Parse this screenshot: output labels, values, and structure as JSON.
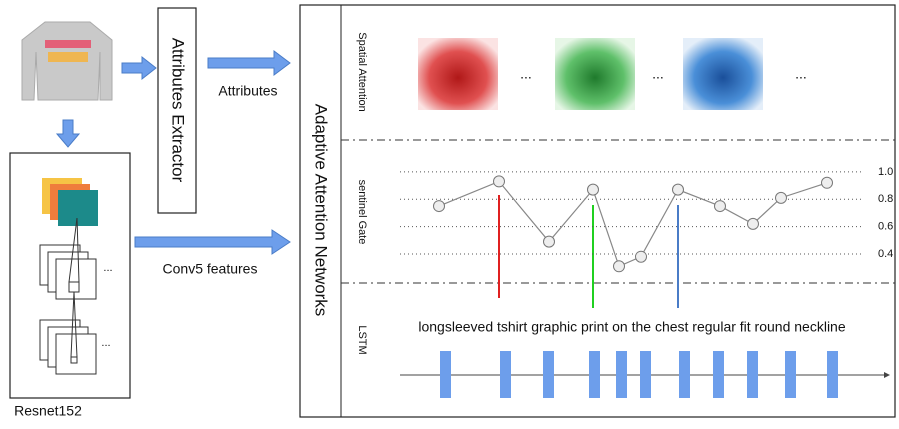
{
  "left": {
    "attributes_box": "Attributes Extractor",
    "attributes_arrow": "Attributes",
    "conv5_arrow": "Conv5 features",
    "resnet_label": "Resnet152",
    "resnet_ellipses": [
      "...",
      "..."
    ]
  },
  "network": {
    "title": "Adaptive Attention Networks",
    "sections": {
      "spatial": "Spatial Attention",
      "gate": "sentinel Gate",
      "lstm": "LSTM"
    },
    "spatial_ellipses": [
      "...",
      "...",
      "..."
    ],
    "caption": "longsleeved tshirt graphic print on the chest regular fit round neckline",
    "gate_chart": {
      "type": "line",
      "values": [
        0.75,
        0.93,
        0.49,
        0.87,
        0.31,
        0.38,
        0.87,
        0.75,
        0.62,
        0.81,
        0.92
      ],
      "ylim": [
        0.25,
        1.05
      ],
      "yticks": [
        {
          "value": 1,
          "label": "1.0"
        },
        0.8,
        0.6,
        0.4
      ],
      "grid": true,
      "color": "#888888"
    }
  }
}
